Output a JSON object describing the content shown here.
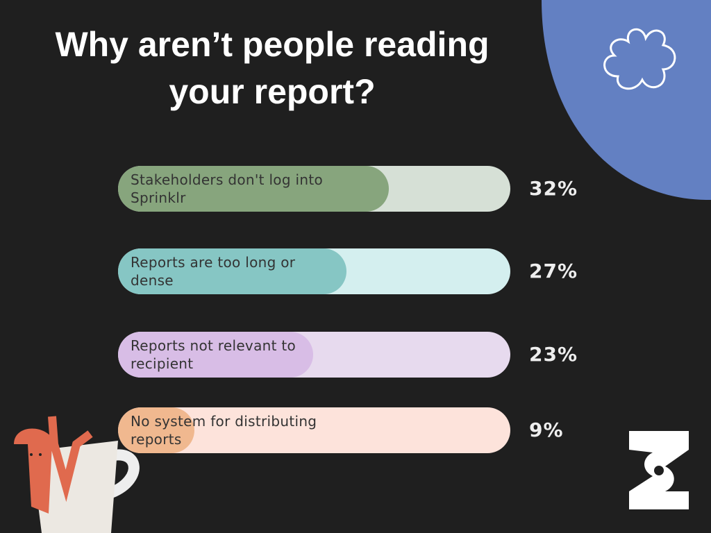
{
  "chart_data": {
    "type": "bar",
    "orientation": "horizontal",
    "title": "Why aren’t people reading your report?",
    "categories": [
      "Stakeholders don't log into Sprinklr",
      "Reports are too long or dense",
      "Reports not relevant to recipient",
      "No system for distributing reports"
    ],
    "values": [
      32,
      27,
      23,
      9
    ],
    "value_labels": [
      "32%",
      "27%",
      "23%",
      "9%"
    ],
    "colors": [
      "#87a57d",
      "#86c6c4",
      "#d8bde6",
      "#f0b88f"
    ],
    "track_colors": [
      "#d6e0d6",
      "#d4efef",
      "#e7daee",
      "#fde3db"
    ]
  }
}
